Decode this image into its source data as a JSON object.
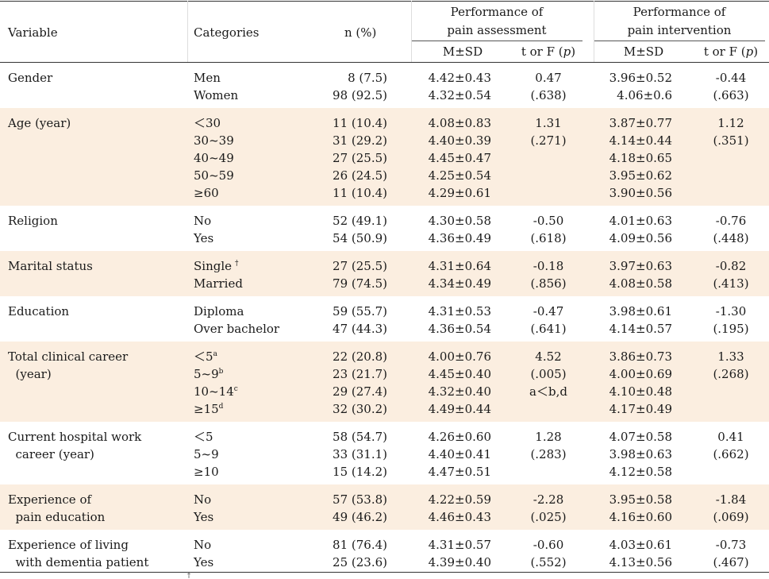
{
  "header": {
    "variable": "Variable",
    "categories": "Categories",
    "n_pct": "n (%)",
    "assessment_line1": "Performance of",
    "assessment_line2": "pain assessment",
    "intervention_line1": "Performance of",
    "intervention_line2": "pain intervention",
    "msd": "M±SD",
    "tf_prefix": "t or F (",
    "tf_p": "p",
    "tf_suffix": ")"
  },
  "groups": [
    {
      "variable": [
        "Gender"
      ],
      "categories": [
        "Men",
        "Women"
      ],
      "n": [
        "8 (7.5)",
        "98 (92.5)"
      ],
      "assess_msd": [
        "4.42±0.43",
        "4.32±0.54"
      ],
      "assess_tf": [
        "0.47",
        "(.638)"
      ],
      "interv_msd": [
        "3.96±0.52",
        "4.06±0.6"
      ],
      "interv_tf": [
        "-0.44",
        "(.663)"
      ]
    },
    {
      "variable": [
        "Age (year)"
      ],
      "categories": [
        "＜30",
        "30~39",
        "40~49",
        "50~59",
        "≥60"
      ],
      "n": [
        "11 (10.4)",
        "31 (29.2)",
        "27 (25.5)",
        "26 (24.5)",
        "11 (10.4)"
      ],
      "assess_msd": [
        "4.08±0.83",
        "4.40±0.39",
        "4.45±0.47",
        "4.25±0.54",
        "4.29±0.61"
      ],
      "assess_tf": [
        "1.31",
        "(.271)"
      ],
      "interv_msd": [
        "3.87±0.77",
        "4.14±0.44",
        "4.18±0.65",
        "3.95±0.62",
        "3.90±0.56"
      ],
      "interv_tf": [
        "1.12",
        "(.351)"
      ]
    },
    {
      "variable": [
        "Religion"
      ],
      "categories": [
        "No",
        "Yes"
      ],
      "n": [
        "52 (49.1)",
        "54 (50.9)"
      ],
      "assess_msd": [
        "4.30±0.58",
        "4.36±0.49"
      ],
      "assess_tf": [
        "-0.50",
        "(.618)"
      ],
      "interv_msd": [
        "4.01±0.63",
        "4.09±0.56"
      ],
      "interv_tf": [
        "-0.76",
        "(.448)"
      ]
    },
    {
      "variable": [
        "Marital status"
      ],
      "categories": [
        "Single",
        "Married"
      ],
      "category_sups": [
        "†",
        ""
      ],
      "n": [
        "27 (25.5)",
        "79 (74.5)"
      ],
      "assess_msd": [
        "4.31±0.64",
        "4.34±0.49"
      ],
      "assess_tf": [
        "-0.18",
        "(.856)"
      ],
      "interv_msd": [
        "3.97±0.63",
        "4.08±0.58"
      ],
      "interv_tf": [
        "-0.82",
        "(.413)"
      ]
    },
    {
      "variable": [
        "Education"
      ],
      "categories": [
        "Diploma",
        "Over bachelor"
      ],
      "n": [
        "59 (55.7)",
        "47 (44.3)"
      ],
      "assess_msd": [
        "4.31±0.53",
        "4.36±0.54"
      ],
      "assess_tf": [
        "-0.47",
        "(.641)"
      ],
      "interv_msd": [
        "3.98±0.61",
        "4.14±0.57"
      ],
      "interv_tf": [
        "-1.30",
        "(.195)"
      ]
    },
    {
      "variable": [
        "Total clinical career",
        "  (year)"
      ],
      "categories": [
        "＜5",
        "5~9",
        "10~14",
        "≥15"
      ],
      "category_sups": [
        "a",
        "b",
        "c",
        "d"
      ],
      "n": [
        "22 (20.8)",
        "23 (21.7)",
        "29 (27.4)",
        "32 (30.2)"
      ],
      "assess_msd": [
        "4.00±0.76",
        "4.45±0.40",
        "4.32±0.40",
        "4.49±0.44"
      ],
      "assess_tf": [
        "4.52",
        "(.005)",
        "a＜b,d"
      ],
      "interv_msd": [
        "3.86±0.73",
        "4.00±0.69",
        "4.10±0.48",
        "4.17±0.49"
      ],
      "interv_tf": [
        "1.33",
        "(.268)"
      ]
    },
    {
      "variable": [
        "Current hospital work",
        "  career (year)"
      ],
      "categories": [
        "＜5",
        "5~9",
        "≥10"
      ],
      "n": [
        "58 (54.7)",
        "33 (31.1)",
        "15 (14.2)"
      ],
      "assess_msd": [
        "4.26±0.60",
        "4.40±0.41",
        "4.47±0.51"
      ],
      "assess_tf": [
        "1.28",
        "(.283)"
      ],
      "interv_msd": [
        "4.07±0.58",
        "3.98±0.63",
        "4.12±0.58"
      ],
      "interv_tf": [
        "0.41",
        "(.662)"
      ]
    },
    {
      "variable": [
        "Experience of",
        "  pain education"
      ],
      "categories": [
        "No",
        "Yes"
      ],
      "n": [
        "57 (53.8)",
        "49 (46.2)"
      ],
      "assess_msd": [
        "4.22±0.59",
        "4.46±0.43"
      ],
      "assess_tf": [
        "-2.28",
        "(.025)"
      ],
      "interv_msd": [
        "3.95±0.58",
        "4.16±0.60"
      ],
      "interv_tf": [
        "-1.84",
        "(.069)"
      ]
    },
    {
      "variable": [
        "Experience of living",
        "  with dementia patient"
      ],
      "categories": [
        "No",
        "Yes"
      ],
      "n": [
        "81 (76.4)",
        "25 (23.6)"
      ],
      "assess_msd": [
        "4.31±0.57",
        "4.39±0.40"
      ],
      "assess_tf": [
        "-0.60",
        "(.552)"
      ],
      "interv_msd": [
        "4.03±0.61",
        "4.13±0.56"
      ],
      "interv_tf": [
        "-0.73",
        "(.467)"
      ]
    }
  ],
  "footnote": "†"
}
